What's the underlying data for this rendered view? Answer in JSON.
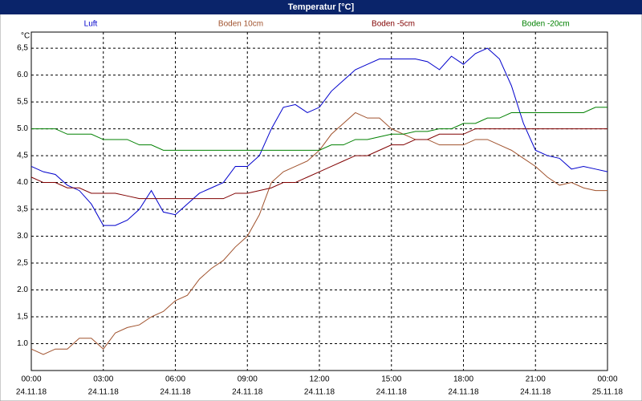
{
  "chart_data": {
    "type": "line",
    "title": "Temperatur [°C]",
    "y_unit": "°C",
    "x": [
      0,
      0.5,
      1,
      1.5,
      2,
      2.5,
      3,
      3.5,
      4,
      4.5,
      5,
      5.5,
      6,
      6.5,
      7,
      7.5,
      8,
      8.5,
      9,
      9.5,
      10,
      10.5,
      11,
      11.5,
      12,
      12.5,
      13,
      13.5,
      14,
      14.5,
      15,
      15.5,
      16,
      16.5,
      17,
      17.5,
      18,
      18.5,
      19,
      19.5,
      20,
      20.5,
      21,
      21.5,
      22,
      22.5,
      23,
      23.5,
      24
    ],
    "series": [
      {
        "name": "Luft",
        "color": "#0000cc",
        "values": [
          4.3,
          4.2,
          4.15,
          3.95,
          3.85,
          3.6,
          3.2,
          3.2,
          3.3,
          3.5,
          3.85,
          3.45,
          3.4,
          3.6,
          3.8,
          3.9,
          4.0,
          4.3,
          4.3,
          4.5,
          5.0,
          5.4,
          5.45,
          5.3,
          5.4,
          5.7,
          5.9,
          6.1,
          6.2,
          6.3,
          6.3,
          6.3,
          6.3,
          6.25,
          6.1,
          6.35,
          6.2,
          6.4,
          6.5,
          6.3,
          5.8,
          5.1,
          4.6,
          4.5,
          4.45,
          4.25,
          4.3,
          4.25,
          4.2
        ]
      },
      {
        "name": "Boden 10cm",
        "color": "#a0522d",
        "values": [
          0.9,
          0.8,
          0.9,
          0.9,
          1.1,
          1.1,
          0.9,
          1.2,
          1.3,
          1.35,
          1.5,
          1.6,
          1.8,
          1.9,
          2.2,
          2.4,
          2.55,
          2.8,
          3.0,
          3.4,
          4.0,
          4.2,
          4.3,
          4.4,
          4.6,
          4.9,
          5.1,
          5.3,
          5.2,
          5.2,
          5.0,
          4.9,
          4.8,
          4.8,
          4.7,
          4.7,
          4.7,
          4.8,
          4.8,
          4.7,
          4.6,
          4.45,
          4.3,
          4.1,
          3.95,
          4.0,
          3.9,
          3.85,
          3.85
        ]
      },
      {
        "name": "Boden -5cm",
        "color": "#800000",
        "values": [
          4.1,
          4.0,
          4.0,
          3.9,
          3.9,
          3.8,
          3.8,
          3.8,
          3.75,
          3.7,
          3.7,
          3.7,
          3.7,
          3.7,
          3.7,
          3.7,
          3.7,
          3.8,
          3.8,
          3.85,
          3.9,
          4.0,
          4.0,
          4.1,
          4.2,
          4.3,
          4.4,
          4.5,
          4.5,
          4.6,
          4.7,
          4.7,
          4.8,
          4.8,
          4.9,
          4.9,
          4.9,
          5.0,
          5.0,
          5.0,
          5.0,
          5.0,
          5.0,
          5.0,
          5.0,
          5.0,
          5.0,
          5.0,
          5.0
        ]
      },
      {
        "name": "Boden -20cm",
        "color": "#008000",
        "values": [
          5.0,
          5.0,
          5.0,
          4.9,
          4.9,
          4.9,
          4.8,
          4.8,
          4.8,
          4.7,
          4.7,
          4.6,
          4.6,
          4.6,
          4.6,
          4.6,
          4.6,
          4.6,
          4.6,
          4.6,
          4.6,
          4.6,
          4.6,
          4.6,
          4.6,
          4.7,
          4.7,
          4.8,
          4.8,
          4.85,
          4.9,
          4.9,
          4.95,
          4.95,
          5.0,
          5.0,
          5.1,
          5.1,
          5.2,
          5.2,
          5.3,
          5.3,
          5.3,
          5.3,
          5.3,
          5.3,
          5.3,
          5.4,
          5.4
        ]
      }
    ],
    "xlim": [
      0,
      24
    ],
    "xticks": [
      {
        "value": 0,
        "label": "00:00",
        "date": "24.11.18"
      },
      {
        "value": 3,
        "label": "03:00",
        "date": "24.11.18"
      },
      {
        "value": 6,
        "label": "06:00",
        "date": "24.11.18"
      },
      {
        "value": 9,
        "label": "09:00",
        "date": "24.11.18"
      },
      {
        "value": 12,
        "label": "12:00",
        "date": "24.11.18"
      },
      {
        "value": 15,
        "label": "15:00",
        "date": "24.11.18"
      },
      {
        "value": 18,
        "label": "18:00",
        "date": "24.11.18"
      },
      {
        "value": 21,
        "label": "21:00",
        "date": "24.11.18"
      },
      {
        "value": 24,
        "label": "00:00",
        "date": "25.11.18"
      }
    ],
    "ylim": [
      0.5,
      6.8
    ],
    "yticks": [
      {
        "value": 1,
        "label": "1.0"
      },
      {
        "value": 1.5,
        "label": "1,5"
      },
      {
        "value": 2,
        "label": "2.0"
      },
      {
        "value": 2.5,
        "label": "2,5"
      },
      {
        "value": 3,
        "label": "3.0"
      },
      {
        "value": 3.5,
        "label": "3,5"
      },
      {
        "value": 4,
        "label": "4.0"
      },
      {
        "value": 4.5,
        "label": "4,5"
      },
      {
        "value": 5,
        "label": "5.0"
      },
      {
        "value": 5.5,
        "label": "5,5"
      },
      {
        "value": 6,
        "label": "6.0"
      },
      {
        "value": 6.5,
        "label": "6,5"
      }
    ],
    "grid": true
  }
}
